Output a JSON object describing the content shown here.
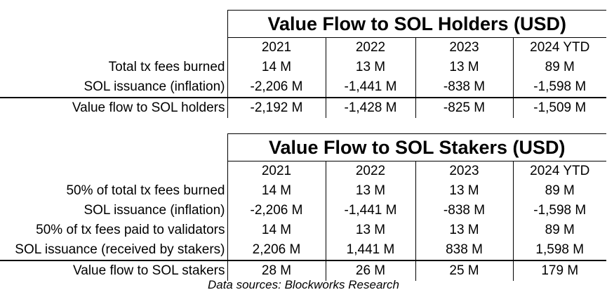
{
  "chart_data": [
    {
      "type": "table",
      "title": "Value Flow to SOL Holders (USD)",
      "columns": [
        "2021",
        "2022",
        "2023",
        "2024 YTD"
      ],
      "rows": [
        {
          "label": "Total tx fees burned",
          "values": [
            "14 M",
            "13 M",
            "13 M",
            "89 M"
          ]
        },
        {
          "label": "SOL issuance (inflation)",
          "values": [
            "-2,206 M",
            "-1,441 M",
            "-838 M",
            "-1,598 M"
          ]
        },
        {
          "label": "Value flow to SOL holders",
          "values": [
            "-2,192 M",
            "-1,428 M",
            "-825 M",
            "-1,509 M"
          ]
        }
      ]
    },
    {
      "type": "table",
      "title": "Value Flow to SOL Stakers (USD)",
      "columns": [
        "2021",
        "2022",
        "2023",
        "2024 YTD"
      ],
      "rows": [
        {
          "label": "50% of total tx fees burned",
          "values": [
            "14 M",
            "13 M",
            "13 M",
            "89 M"
          ]
        },
        {
          "label": "SOL issuance (inflation)",
          "values": [
            "-2,206 M",
            "-1,441 M",
            "-838 M",
            "-1,598 M"
          ]
        },
        {
          "label": "50% of tx fees paid to validators",
          "values": [
            "14 M",
            "13 M",
            "13 M",
            "89 M"
          ]
        },
        {
          "label": "SOL issuance (received by stakers)",
          "values": [
            "2,206 M",
            "1,441 M",
            "838 M",
            "1,598 M"
          ]
        },
        {
          "label": "Value flow to SOL stakers",
          "values": [
            "28 M",
            "26 M",
            "25 M",
            "179 M"
          ]
        }
      ]
    }
  ],
  "source": "Data sources: Blockworks Research"
}
